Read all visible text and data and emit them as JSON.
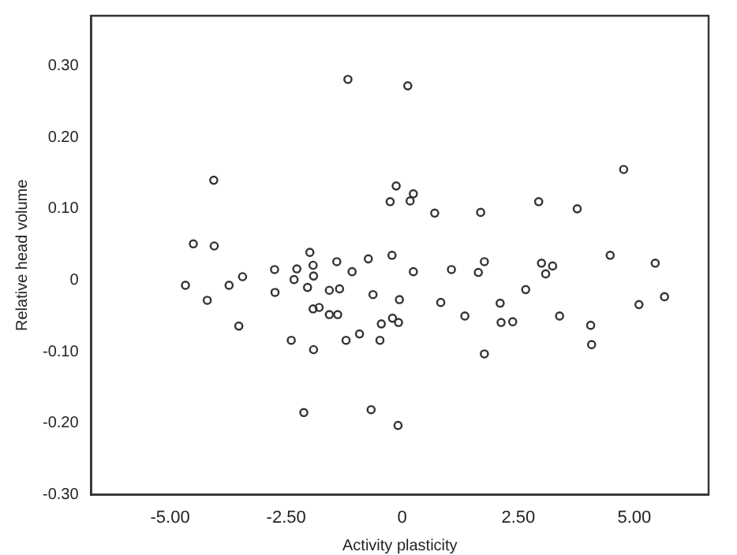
{
  "chart_data": {
    "type": "scatter",
    "xlabel": "Activity plasticity",
    "ylabel": "Relative head volume",
    "x": [
      -4.67,
      -4.2,
      -3.73,
      -3.44,
      -3.52,
      -2.75,
      -2.74,
      -2.33,
      -2.27,
      -2.39,
      -1.92,
      -1.91,
      -2.04,
      -1.92,
      -1.79,
      -1.91,
      -2.12,
      -1.57,
      -1.35,
      -1.57,
      -1.39,
      -1.41,
      -1.08,
      -1.21,
      -0.92,
      -0.73,
      -0.63,
      -0.67,
      -0.45,
      -0.48,
      -0.22,
      -0.21,
      -0.08,
      -0.06,
      -0.09,
      0.24,
      1.06,
      0.83,
      1.35,
      1.64,
      1.77,
      1.77,
      2.11,
      2.13,
      2.38,
      2.66,
      3.0,
      3.09,
      3.24,
      3.39,
      4.06,
      4.08,
      4.48,
      5.1,
      5.45,
      5.65,
      -1.17,
      0.12,
      -4.06,
      -4.5,
      -4.05,
      -0.13,
      -0.26,
      0.17,
      0.24,
      -1.99,
      0.7,
      1.69,
      2.94,
      3.77,
      4.77
    ],
    "series": [
      {
        "color": "#333333",
        "values": [
          -0.007,
          -0.028,
          -0.007,
          0.005,
          -0.064,
          0.015,
          -0.017,
          0.001,
          0.016,
          -0.084,
          0.021,
          0.006,
          -0.01,
          -0.04,
          -0.038,
          -0.097,
          -0.185,
          -0.014,
          -0.012,
          -0.048,
          -0.048,
          0.026,
          0.012,
          -0.084,
          -0.075,
          0.03,
          -0.02,
          -0.181,
          -0.061,
          -0.084,
          0.035,
          -0.053,
          -0.059,
          -0.027,
          -0.203,
          0.012,
          0.015,
          -0.031,
          -0.05,
          0.011,
          0.026,
          -0.103,
          -0.032,
          -0.059,
          -0.058,
          -0.013,
          0.024,
          0.009,
          0.02,
          -0.05,
          -0.063,
          -0.09,
          0.035,
          -0.034,
          0.024,
          -0.023,
          0.281,
          0.272,
          0.14,
          0.051,
          0.048,
          0.132,
          0.11,
          0.111,
          0.121,
          0.039,
          0.094,
          0.095,
          0.11,
          0.1,
          0.155
        ]
      }
    ],
    "xlim": [
      -6.7,
      6.6
    ],
    "ylim": [
      -0.3,
      0.37
    ],
    "xticks": [
      {
        "value": -5,
        "label": "-5.00"
      },
      {
        "value": -2.5,
        "label": "-2.50"
      },
      0,
      {
        "value": 2.5,
        "label": "2.50"
      },
      {
        "value": 5,
        "label": "5.00"
      }
    ],
    "yticks": [
      {
        "value": -0.3,
        "label": "-0.30"
      },
      {
        "value": -0.2,
        "label": "-0.20"
      },
      {
        "value": -0.1,
        "label": "-0.10"
      },
      0,
      {
        "value": 0.1,
        "label": "0.10"
      },
      {
        "value": 0.2,
        "label": "0.20"
      },
      {
        "value": 0.3,
        "label": "0.30"
      }
    ],
    "grid": false,
    "legend": false,
    "marker": "circle"
  }
}
